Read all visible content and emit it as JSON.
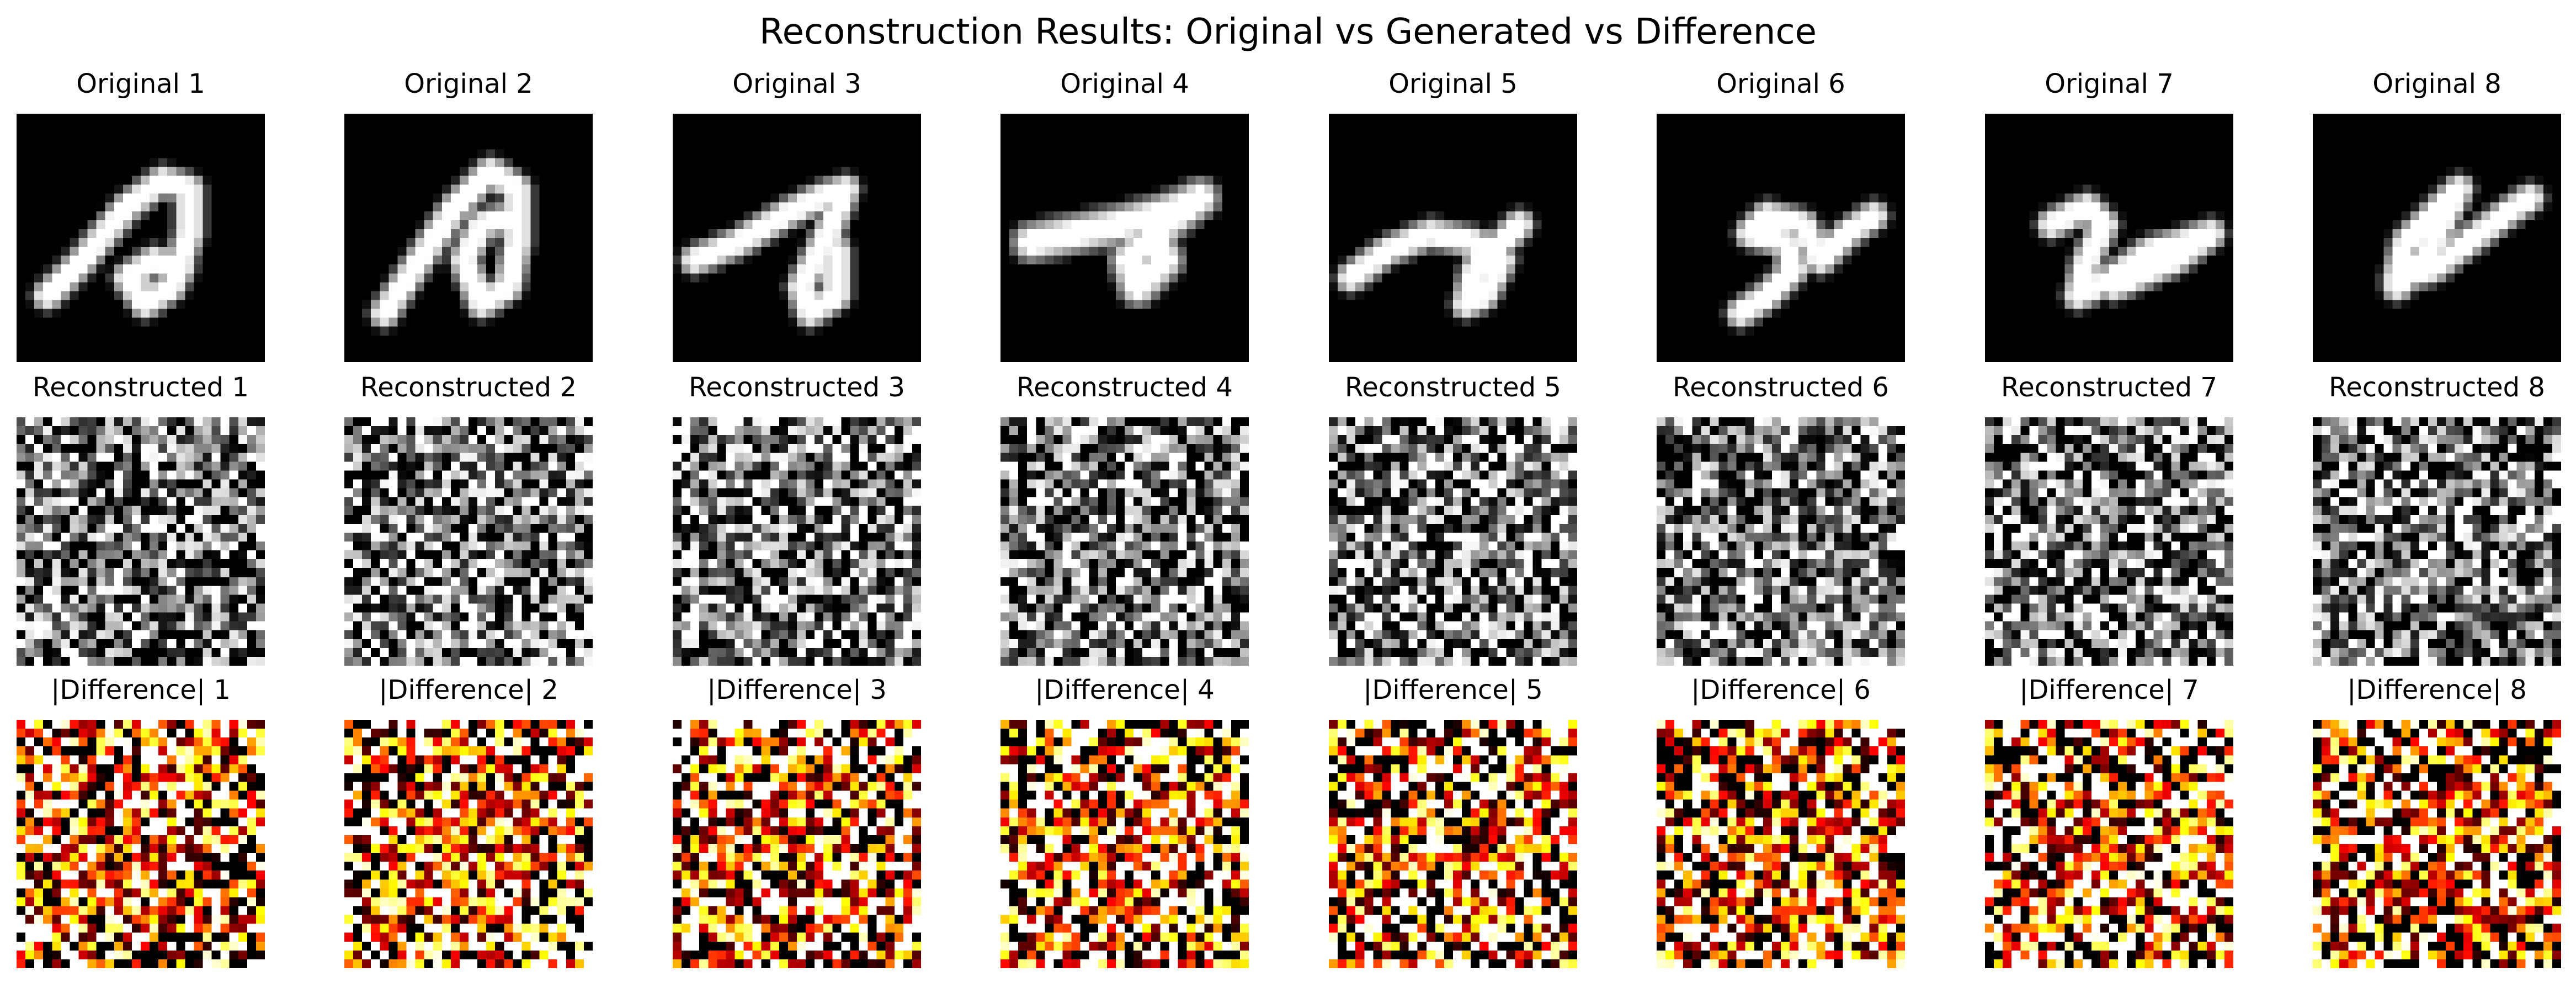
{
  "title": "Reconstruction Results: Original vs Generated vs Difference",
  "rows": [
    {
      "row": "original",
      "colormap": "gray",
      "labels": [
        "Original 1",
        "Original 2",
        "Original 3",
        "Original 4",
        "Original 5",
        "Original 6",
        "Original 7",
        "Original 8"
      ]
    },
    {
      "row": "reconstructed",
      "colormap": "gray",
      "labels": [
        "Reconstructed 1",
        "Reconstructed 2",
        "Reconstructed 3",
        "Reconstructed 4",
        "Reconstructed 5",
        "Reconstructed 6",
        "Reconstructed 7",
        "Reconstructed 8"
      ]
    },
    {
      "row": "difference",
      "colormap": "hot",
      "labels": [
        "|Difference| 1",
        "|Difference| 2",
        "|Difference| 3",
        "|Difference| 4",
        "|Difference| 5",
        "|Difference| 6",
        "|Difference| 7",
        "|Difference| 8"
      ]
    }
  ],
  "image_resolution": "28x28",
  "colors": {
    "background": "#ffffff",
    "digit_background": "#000000"
  }
}
